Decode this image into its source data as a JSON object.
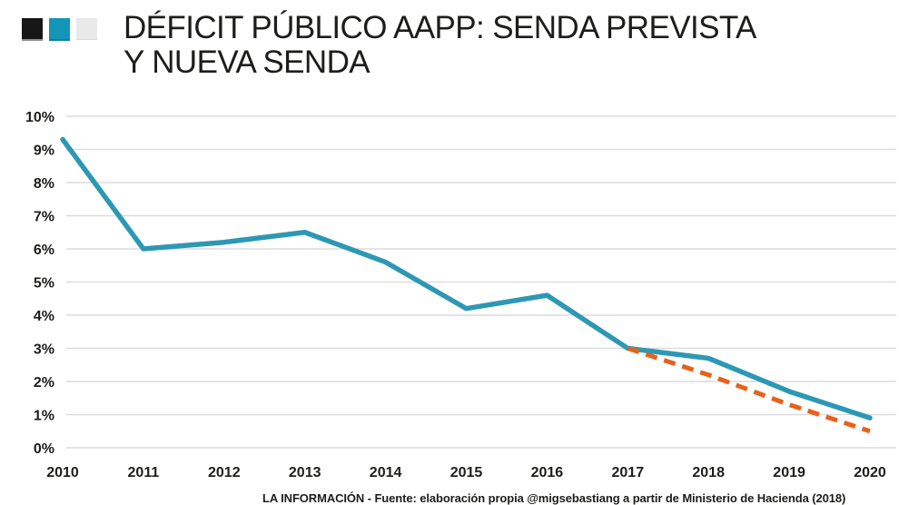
{
  "header": {
    "squares": [
      {
        "name": "black-square",
        "color": "#171717"
      },
      {
        "name": "teal-square",
        "color": "#1295b6"
      },
      {
        "name": "gray-square",
        "color": "#e9e9e9"
      }
    ],
    "title_line1": "DÉFICIT PÚBLICO AAPP: SENDA PREVISTA",
    "title_line2": "Y NUEVA SENDA"
  },
  "chart_data": {
    "type": "line",
    "title": "DÉFICIT PÚBLICO AAPP: SENDA PREVISTA Y NUEVA SENDA",
    "categories": [
      "2010",
      "2011",
      "2012",
      "2013",
      "2014",
      "2015",
      "2016",
      "2017",
      "2018",
      "2019",
      "2020"
    ],
    "series": [
      {
        "name": "Nueva senda",
        "style": "solid",
        "color": "#2d98b4",
        "values": [
          9.3,
          6.0,
          6.2,
          6.5,
          5.6,
          4.2,
          4.6,
          3.0,
          2.7,
          1.7,
          0.9
        ]
      },
      {
        "name": "Senda prevista",
        "style": "dashed",
        "color": "#e8611a",
        "values": [
          null,
          null,
          null,
          null,
          null,
          null,
          null,
          3.0,
          2.2,
          1.3,
          0.5
        ]
      }
    ],
    "xlabel": "",
    "ylabel": "",
    "ylim": [
      0,
      10
    ],
    "yticks": [
      "10%",
      "9%",
      "8%",
      "7%",
      "6%",
      "5%",
      "4%",
      "3%",
      "2%",
      "1%",
      "0%"
    ],
    "grid": true,
    "legend_position": "none",
    "gridline_color": "#dcdcdc",
    "text_color": "#1d1d1b",
    "background_color": "#ffffff"
  },
  "footer": {
    "source": "LA INFORMACIÓN - Fuente: elaboración propia @migsebastiang a partir de Ministerio de Hacienda (2018)"
  }
}
